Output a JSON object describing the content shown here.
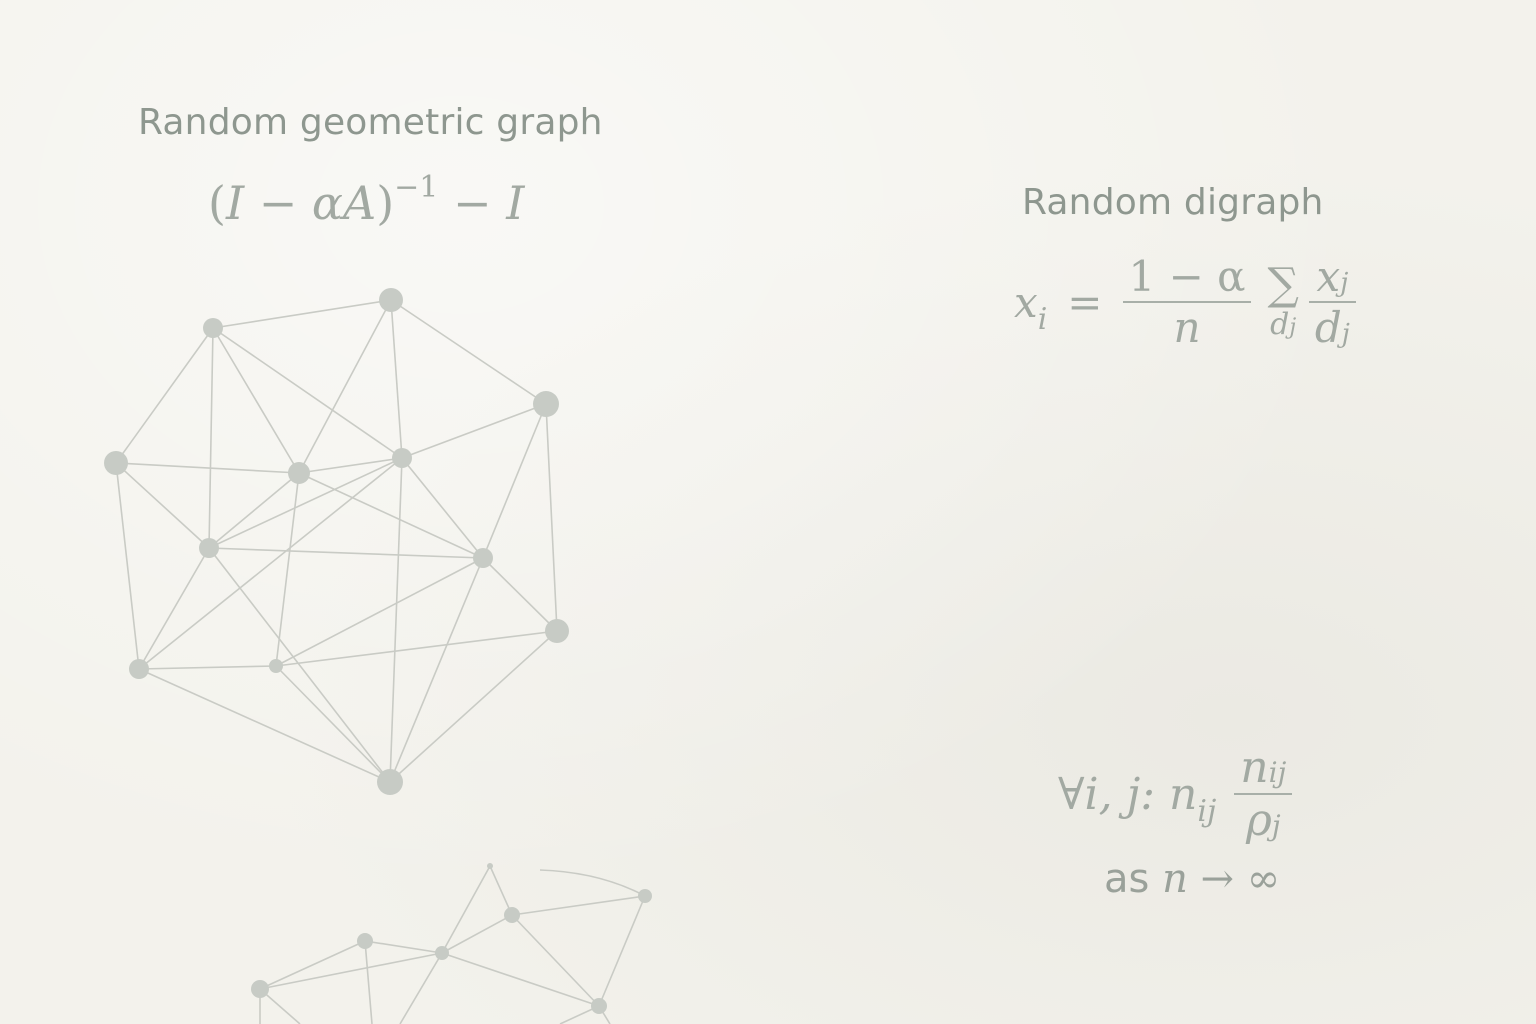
{
  "left": {
    "title": "Random geometric graph",
    "formula": {
      "open": "(",
      "I": "I",
      "minus": "−",
      "alphaA": "αA",
      "close": ")",
      "exponent": "−1",
      "minus2": "−",
      "I2": "I"
    }
  },
  "right": {
    "title": "Random digraph",
    "eq1": {
      "lhs": "x",
      "lhs_sub": "i",
      "equals": "=",
      "frac_num": "1 − α",
      "frac_den": "n",
      "sum": "∑",
      "sum_sub": "d",
      "sum_sub_idx": "j",
      "frac2_num": "x",
      "frac2_num_sub": "j",
      "frac2_den": "d",
      "frac2_den_sub": "j"
    },
    "eq2": {
      "forall": "∀i, j: n",
      "forall_sub": "ij",
      "frac_num": "n",
      "frac_num_sub": "ij",
      "frac_den": "ρ",
      "frac_den_sub": "j"
    },
    "limit": {
      "as": "as ",
      "n": "n",
      "arrow": " → ∞"
    }
  },
  "colors": {
    "background": "#f3f2ec",
    "node": "#c9ccc6",
    "edge": "#c6c8c2",
    "text": "#8e978f"
  }
}
